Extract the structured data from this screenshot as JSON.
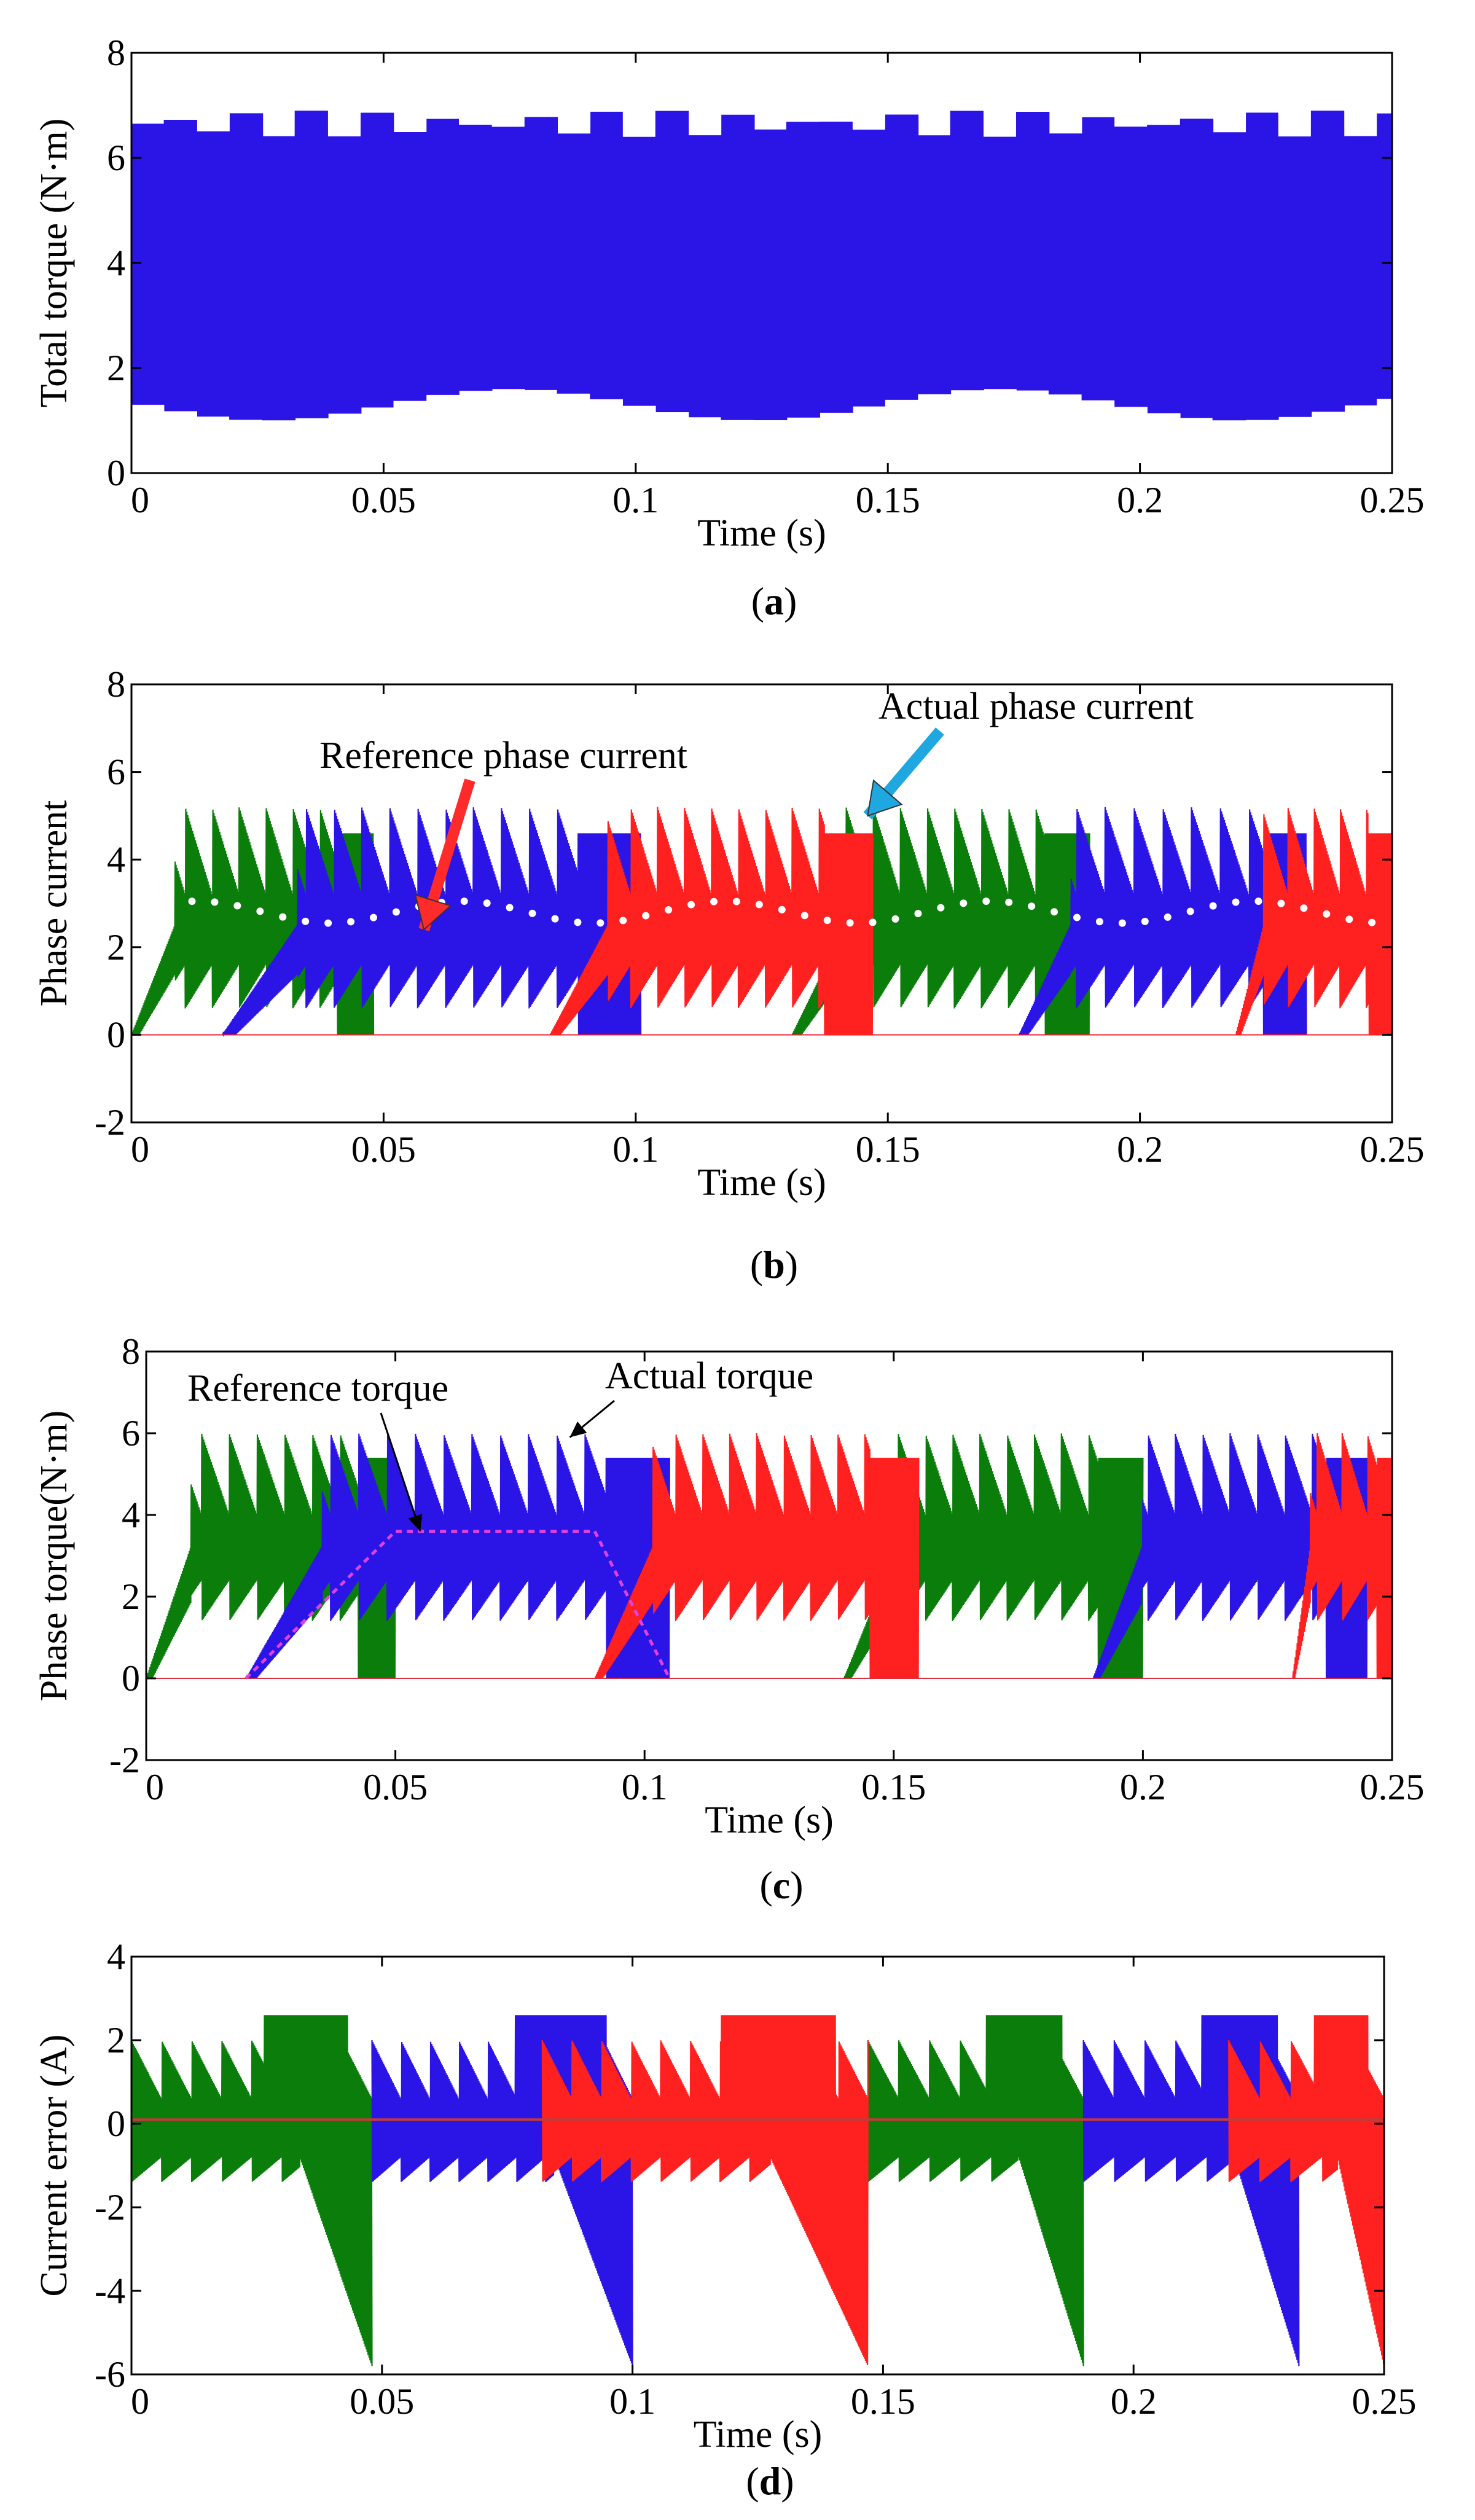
{
  "colors": {
    "phase_a": "#0a7d0a",
    "phase_b": "#2b14e6",
    "phase_c": "#ff2020",
    "total_torque": "#2b14e6",
    "reference_torque": "#e040e0",
    "reference_marker": "#ffffff",
    "annotation_red_arrow": "#ff2a2a",
    "annotation_blue_arrow": "#1fa8e0"
  },
  "chart_data": [
    {
      "id": "a",
      "type": "line",
      "caption": "a",
      "xlabel": "Time (s)",
      "ylabel": "Total torque (N·m)",
      "xlim": [
        0,
        0.25
      ],
      "ylim": [
        0,
        8
      ],
      "xticks": [
        "0",
        "0.05",
        "0.1",
        "0.15",
        "0.2",
        "0.25"
      ],
      "yticks": [
        "0",
        "2",
        "4",
        "6",
        "8"
      ],
      "grid": false,
      "series": [
        {
          "color": "total_torque",
          "mean": 4.0,
          "envelope_min": 0.7,
          "envelope_max": 6.9
        }
      ],
      "annotations": []
    },
    {
      "id": "b",
      "type": "line",
      "caption": "b",
      "xlabel": "Time (s)",
      "ylabel": "Phase current",
      "xlim": [
        0,
        0.25
      ],
      "ylim": [
        -2,
        8
      ],
      "xticks": [
        "0",
        "0.05",
        "0.1",
        "0.15",
        "0.2",
        "0.25"
      ],
      "yticks": [
        "-2",
        "0",
        "2",
        "4",
        "6",
        "8"
      ],
      "grid": false,
      "series": [
        {
          "color": "phase_a",
          "conduction_intervals": [
            [
              0.0,
              0.048
            ],
            [
              0.131,
              0.19
            ]
          ]
        },
        {
          "color": "phase_b",
          "conduction_intervals": [
            [
              0.018,
              0.101
            ],
            [
              0.176,
              0.233
            ]
          ]
        },
        {
          "color": "phase_c",
          "conduction_intervals": [
            [
              0.083,
              0.147
            ],
            [
              0.219,
              0.25
            ]
          ]
        },
        {
          "color": "reference_marker",
          "reference_level": 2.8
        }
      ],
      "annotations": [
        {
          "text": "Reference phase current",
          "points_to": [
            0.058,
            2.4
          ]
        },
        {
          "text": "Actual phase current",
          "points_to": [
            0.146,
            5.0
          ]
        }
      ]
    },
    {
      "id": "c",
      "type": "line",
      "caption": "c",
      "xlabel": "Time (s)",
      "ylabel": "Phase torque(N·m)",
      "xlim": [
        0,
        0.25
      ],
      "ylim": [
        -2,
        8
      ],
      "xticks": [
        "0",
        "0.05",
        "0.1",
        "0.15",
        "0.2",
        "0.25"
      ],
      "yticks": [
        "-2",
        "0",
        "2",
        "4",
        "6",
        "8"
      ],
      "grid": false,
      "series": [
        {
          "color": "phase_a",
          "conduction_intervals": [
            [
              0.0,
              0.05
            ],
            [
              0.14,
              0.2
            ]
          ]
        },
        {
          "color": "phase_b",
          "conduction_intervals": [
            [
              0.02,
              0.105
            ],
            [
              0.19,
              0.245
            ]
          ]
        },
        {
          "color": "phase_c",
          "conduction_intervals": [
            [
              0.09,
              0.155
            ],
            [
              0.23,
              0.25
            ]
          ]
        },
        {
          "color": "reference_torque",
          "points": [
            [
              0.02,
              0.0
            ],
            [
              0.05,
              3.6
            ],
            [
              0.09,
              3.6
            ],
            [
              0.105,
              0.0
            ]
          ]
        }
      ],
      "annotations": [
        {
          "text": "Reference torque",
          "points_to": [
            0.055,
            3.6
          ]
        },
        {
          "text": "Actual torque",
          "points_to": [
            0.085,
            5.9
          ]
        }
      ]
    },
    {
      "id": "d",
      "type": "line",
      "caption": "d",
      "xlabel": "Time (s)",
      "ylabel": "Current error (A)",
      "xlim": [
        0,
        0.25
      ],
      "ylim": [
        -6,
        4
      ],
      "xticks": [
        "0",
        "0.05",
        "0.1",
        "0.15",
        "0.2",
        "0.25"
      ],
      "yticks": [
        "-6",
        "-4",
        "-2",
        "0",
        "2",
        "4"
      ],
      "grid": false,
      "series": [
        {
          "color": "phase_a",
          "intervals": [
            [
              0.0,
              0.048
            ],
            [
              0.147,
              0.19
            ]
          ]
        },
        {
          "color": "phase_b",
          "intervals": [
            [
              0.048,
              0.1
            ],
            [
              0.19,
              0.233
            ]
          ]
        },
        {
          "color": "phase_c",
          "intervals": [
            [
              0.082,
              0.147
            ],
            [
              0.219,
              0.25
            ]
          ]
        }
      ],
      "annotations": []
    }
  ]
}
